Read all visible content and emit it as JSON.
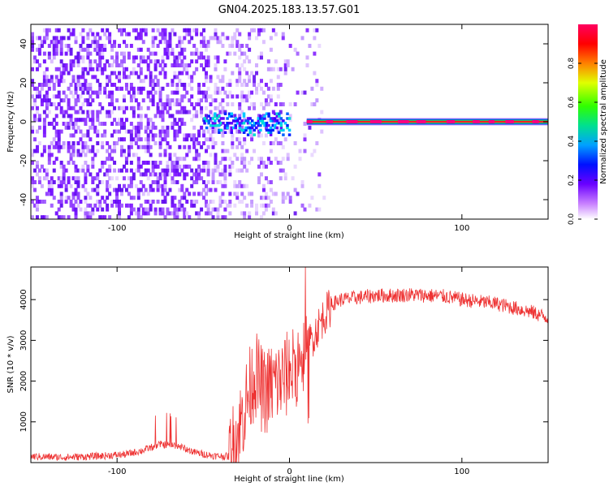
{
  "title": "GN04.2025.183.13.57.G01",
  "chart_data": [
    {
      "type": "heatmap",
      "title": "GN04.2025.183.13.57.G01",
      "xlabel": "Height of straight line (km)",
      "ylabel": "Frequency (Hz)",
      "xlim": [
        -150,
        150
      ],
      "ylim": [
        -50,
        50
      ],
      "xticks": [
        -100,
        0,
        100
      ],
      "yticks": [
        -40,
        -20,
        0,
        20,
        40
      ],
      "colorbar": {
        "label": "Normalized spectral amplitude",
        "range": [
          0,
          1
        ],
        "ticks": [
          "0.0",
          "0.2",
          "0.4",
          "0.6",
          "0.8"
        ],
        "colors": [
          "#ffffff",
          "#a04cff",
          "#6a00ff",
          "#0000ff",
          "#00c8ff",
          "#00ff40",
          "#ffff00",
          "#ff0000",
          "#ff0080"
        ]
      },
      "features": [
        {
          "name": "broadband noise",
          "x_range": [
            -150,
            -48
          ],
          "freq_range": [
            -50,
            50
          ],
          "amplitude": 0.1
        },
        {
          "name": "fading noise",
          "x_range": [
            -48,
            20
          ],
          "freq_range": [
            -50,
            50
          ],
          "amplitude": 0.05
        },
        {
          "name": "scattered blob",
          "x_range": [
            -50,
            0
          ],
          "freq_range": [
            -6,
            6
          ],
          "amplitude": 0.2
        },
        {
          "name": "carrier line",
          "x_range": [
            10,
            150
          ],
          "freq": 0,
          "amplitude": 0.9
        }
      ]
    },
    {
      "type": "line",
      "xlabel": "Height of straight line (km)",
      "ylabel": "SNR (10 * v/v)",
      "xlim": [
        -150,
        150
      ],
      "ylim": [
        0,
        4800
      ],
      "xticks": [
        -100,
        0,
        100
      ],
      "yticks": [
        1000,
        2000,
        3000,
        4000
      ],
      "color": "#ee3333",
      "series": [
        {
          "x": [
            -150,
            -130,
            -110,
            -95,
            -85,
            -75,
            -65,
            -55,
            -45,
            -35,
            -30,
            -25,
            -20,
            -15,
            -10,
            -5,
            0,
            5,
            10,
            15,
            20,
            25,
            30,
            40,
            50,
            60,
            70,
            80,
            90,
            100,
            110,
            120,
            130,
            140,
            150
          ],
          "values": [
            150,
            130,
            160,
            200,
            300,
            450,
            420,
            250,
            170,
            150,
            700,
            1500,
            2200,
            1700,
            1900,
            2000,
            2200,
            2500,
            2800,
            3200,
            3600,
            3900,
            4000,
            4050,
            4100,
            4100,
            4120,
            4100,
            4080,
            4000,
            3950,
            3900,
            3800,
            3700,
            3550
          ]
        }
      ]
    }
  ]
}
